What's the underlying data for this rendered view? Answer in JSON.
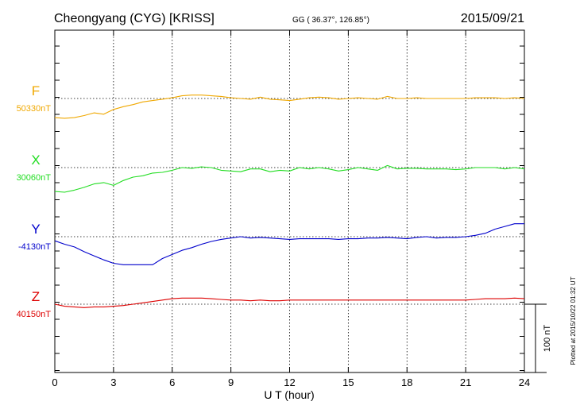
{
  "chart_data": {
    "type": "line",
    "title": "Cheongyang (CYG)  [KRISS]",
    "coords": "GG ( 36.37°, 126.85°)",
    "date": "2015/09/21",
    "xlabel": "U T (hour)",
    "xlim": [
      0,
      24
    ],
    "xticks": [
      0,
      3,
      6,
      9,
      12,
      15,
      18,
      21,
      24
    ],
    "xtick_labels": [
      "0",
      "3",
      "6",
      "9",
      "12",
      "15",
      "18",
      "21",
      "24"
    ],
    "grid": true,
    "scale_bar": {
      "label": "100 nT",
      "value_nT": 100
    },
    "plotted_note": "Plotted at 2015/10/22 01:32 UT",
    "series": [
      {
        "name": "F",
        "baseline_label": "50330nT",
        "baseline_nT": 50330,
        "color": "#f0a800",
        "x": [
          0,
          0.5,
          1,
          1.5,
          2,
          2.5,
          3,
          3.5,
          4,
          4.5,
          5,
          5.5,
          6,
          6.5,
          7,
          7.5,
          8,
          8.5,
          9,
          9.5,
          10,
          10.5,
          11,
          11.5,
          12,
          12.5,
          13,
          13.5,
          14,
          14.5,
          15,
          15.5,
          16,
          16.5,
          17,
          17.5,
          18,
          18.5,
          19,
          19.5,
          20,
          20.5,
          21,
          21.5,
          22,
          22.5,
          23,
          23.5,
          24
        ],
        "y": [
          50302,
          50301,
          50302,
          50305,
          50309,
          50307,
          50314,
          50318,
          50321,
          50325,
          50327,
          50329,
          50331,
          50334,
          50335,
          50335,
          50334,
          50333,
          50331,
          50330,
          50329,
          50332,
          50329,
          50328,
          50327,
          50329,
          50331,
          50332,
          50331,
          50329,
          50330,
          50331,
          50330,
          50329,
          50333,
          50330,
          50330,
          50331,
          50330,
          50330,
          50330,
          50330,
          50330,
          50331,
          50331,
          50331,
          50330,
          50331,
          50330
        ]
      },
      {
        "name": "X",
        "baseline_label": "30060nT",
        "baseline_nT": 30060,
        "color": "#22dd22",
        "x": [
          0,
          0.5,
          1,
          1.5,
          2,
          2.5,
          3,
          3.5,
          4,
          4.5,
          5,
          5.5,
          6,
          6.5,
          7,
          7.5,
          8,
          8.5,
          9,
          9.5,
          10,
          10.5,
          11,
          11.5,
          12,
          12.5,
          13,
          13.5,
          14,
          14.5,
          15,
          15.5,
          16,
          16.5,
          17,
          17.5,
          18,
          18.5,
          19,
          19.5,
          20,
          20.5,
          21,
          21.5,
          22,
          22.5,
          23,
          23.5,
          24
        ],
        "y": [
          30025,
          30024,
          30027,
          30031,
          30036,
          30038,
          30034,
          30041,
          30046,
          30048,
          30052,
          30053,
          30056,
          30060,
          30059,
          30061,
          30060,
          30056,
          30055,
          30054,
          30058,
          30058,
          30054,
          30056,
          30055,
          30060,
          30058,
          30060,
          30058,
          30055,
          30057,
          30060,
          30058,
          30056,
          30063,
          30058,
          30059,
          30059,
          30058,
          30058,
          30058,
          30057,
          30058,
          30060,
          30060,
          30060,
          30058,
          30060,
          30058
        ]
      },
      {
        "name": "Y",
        "baseline_label": "-4130nT",
        "baseline_nT": -4130,
        "color": "#0000cc",
        "x": [
          0,
          0.5,
          1,
          1.5,
          2,
          2.5,
          3,
          3.5,
          4,
          4.5,
          5,
          5.5,
          6,
          6.5,
          7,
          7.5,
          8,
          8.5,
          9,
          9.5,
          10,
          10.5,
          11,
          11.5,
          12,
          12.5,
          13,
          13.5,
          14,
          14.5,
          15,
          15.5,
          16,
          16.5,
          17,
          17.5,
          18,
          18.5,
          19,
          19.5,
          20,
          20.5,
          21,
          21.5,
          22,
          22.5,
          23,
          23.5,
          24
        ],
        "y": [
          -4136,
          -4141,
          -4145,
          -4152,
          -4158,
          -4164,
          -4169,
          -4171,
          -4171,
          -4171,
          -4171,
          -4162,
          -4156,
          -4150,
          -4146,
          -4141,
          -4137,
          -4134,
          -4132,
          -4130,
          -4132,
          -4131,
          -4132,
          -4133,
          -4134,
          -4133,
          -4133,
          -4133,
          -4133,
          -4134,
          -4133,
          -4133,
          -4132,
          -4132,
          -4131,
          -4132,
          -4133,
          -4131,
          -4130,
          -4132,
          -4131,
          -4131,
          -4130,
          -4128,
          -4125,
          -4119,
          -4115,
          -4111,
          -4111
        ]
      },
      {
        "name": "Z",
        "baseline_label": "40150nT",
        "baseline_nT": 40150,
        "color": "#dd0000",
        "x": [
          0,
          0.5,
          1,
          1.5,
          2,
          2.5,
          3,
          3.5,
          4,
          4.5,
          5,
          5.5,
          6,
          6.5,
          7,
          7.5,
          8,
          8.5,
          9,
          9.5,
          10,
          10.5,
          11,
          11.5,
          12,
          12.5,
          13,
          13.5,
          14,
          14.5,
          15,
          15.5,
          16,
          16.5,
          17,
          17.5,
          18,
          18.5,
          19,
          19.5,
          20,
          20.5,
          21,
          21.5,
          22,
          22.5,
          23,
          23.5,
          24
        ],
        "y": [
          40150,
          40147,
          40146,
          40145,
          40146,
          40146,
          40147,
          40148,
          40150,
          40152,
          40154,
          40156,
          40158,
          40159,
          40159,
          40159,
          40158,
          40157,
          40156,
          40156,
          40155,
          40156,
          40155,
          40155,
          40156,
          40156,
          40156,
          40156,
          40156,
          40156,
          40156,
          40156,
          40156,
          40156,
          40156,
          40156,
          40156,
          40156,
          40156,
          40156,
          40156,
          40156,
          40156,
          40157,
          40158,
          40158,
          40158,
          40159,
          40158
        ]
      }
    ]
  }
}
